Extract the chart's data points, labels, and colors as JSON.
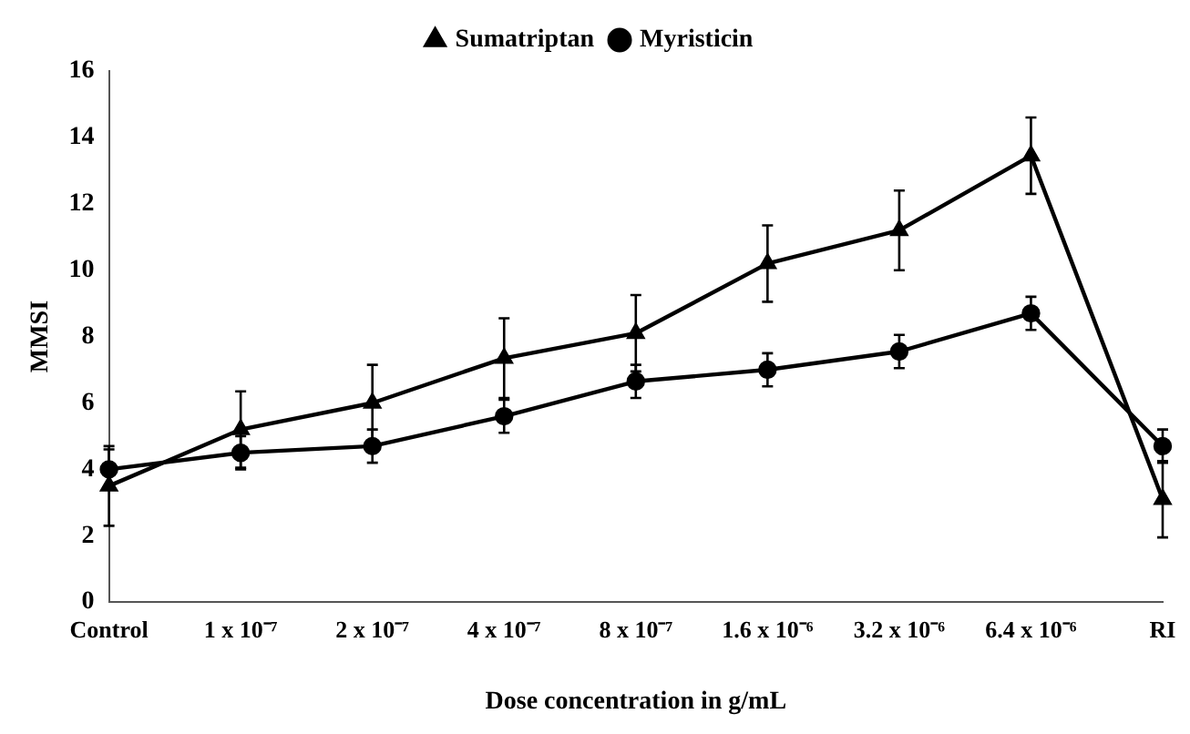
{
  "chart_data": {
    "type": "line",
    "xlabel": "Dose concentration in g/mL",
    "ylabel": "MMSI",
    "categories": [
      "Control",
      "1 x 10⁻⁷",
      "2 x 10⁻⁷",
      "4 x 10⁻⁷",
      "8 x 10⁻⁷",
      "1.6 x 10⁻⁶",
      "3.2 x 10⁻⁶",
      "6.4 x 10⁻⁶",
      "RI"
    ],
    "series": [
      {
        "name": "Sumatriptan",
        "color": "#000000",
        "marker": "triangle",
        "values": [
          3.5,
          5.2,
          6.0,
          7.35,
          8.1,
          10.2,
          11.2,
          13.45,
          3.1
        ],
        "errors": [
          1.2,
          1.15,
          1.15,
          1.2,
          1.15,
          1.15,
          1.2,
          1.15,
          1.15
        ]
      },
      {
        "name": "Myristicin",
        "color": "#000000",
        "marker": "circle",
        "values": [
          4.0,
          4.5,
          4.7,
          5.6,
          6.65,
          7.0,
          7.55,
          8.7,
          4.7
        ],
        "errors": [
          0.6,
          0.5,
          0.5,
          0.5,
          0.5,
          0.5,
          0.5,
          0.5,
          0.5
        ]
      }
    ],
    "ylim": [
      0,
      16
    ],
    "yticks": [
      0,
      2,
      4,
      6,
      8,
      10,
      12,
      14,
      16
    ],
    "grid": false,
    "legend": "top"
  }
}
